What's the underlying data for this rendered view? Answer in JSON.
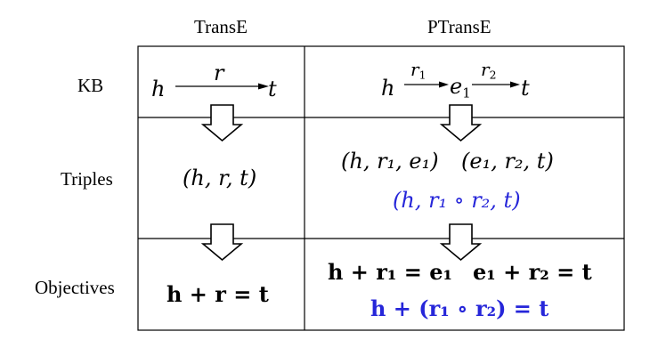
{
  "headers": {
    "transe": "TransE",
    "ptranse": "PTransE"
  },
  "rows": {
    "kb": "KB",
    "triples": "Triples",
    "objectives": "Objectives"
  },
  "kb": {
    "transe": {
      "h": "h",
      "r": "r",
      "t": "t"
    },
    "ptranse": {
      "h": "h",
      "r1": "r",
      "r1_sub": "1",
      "e1": "e",
      "e1_sub": "1",
      "r2": "r",
      "r2_sub": "2",
      "t": "t"
    }
  },
  "triples": {
    "transe": "(h, r, t)",
    "ptranse_1": "(h, r₁, e₁)",
    "ptranse_2": "(e₁, r₂, t)",
    "ptranse_path": "(h, r₁ ∘ r₂, t)"
  },
  "objectives": {
    "transe": "h + r = t",
    "ptranse_1": "h + r₁ = e₁",
    "ptranse_2": "e₁ + r₂ = t",
    "ptranse_path": "h + (r₁ ∘ r₂) = t"
  },
  "colors": {
    "highlight": "#2626d9",
    "line": "#000000"
  }
}
